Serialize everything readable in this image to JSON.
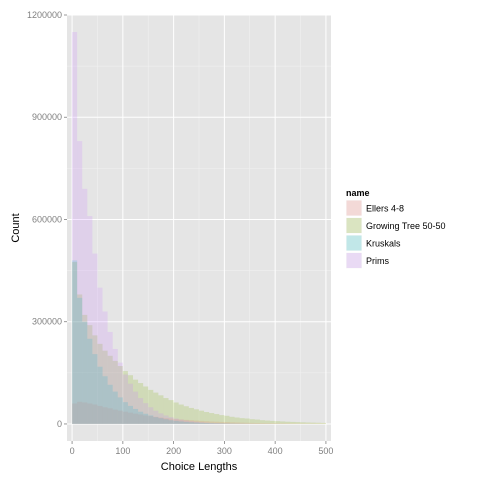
{
  "chart_data": {
    "type": "bar",
    "xlabel": "Choice Lengths",
    "ylabel": "Count",
    "xlim": [
      -10,
      510
    ],
    "ylim": [
      -50000,
      1200000
    ],
    "x_ticks": [
      0,
      100,
      200,
      300,
      400,
      500
    ],
    "x_tick_labels": [
      "0",
      "100",
      "200",
      "300",
      "400",
      "500"
    ],
    "y_ticks": [
      0,
      300000,
      600000,
      900000,
      1200000
    ],
    "y_tick_labels": [
      "0",
      "300000",
      "600000",
      "900000",
      "1200000"
    ],
    "grid": true,
    "bin_width": 10,
    "x": [
      0,
      10,
      20,
      30,
      40,
      50,
      60,
      70,
      80,
      90,
      100,
      110,
      120,
      130,
      140,
      150,
      160,
      170,
      180,
      190,
      200,
      210,
      220,
      230,
      240,
      250,
      260,
      270,
      280,
      290,
      300,
      310,
      320,
      330,
      340,
      350,
      360,
      370,
      380,
      390,
      400,
      410,
      420,
      430,
      440,
      450,
      460,
      470,
      480,
      490
    ],
    "series": [
      {
        "name": "Ellers 4-8",
        "color": "#f8766d",
        "values": [
          60000,
          65000,
          63000,
          60000,
          57000,
          53000,
          49000,
          46000,
          42000,
          39000,
          36000,
          33000,
          30000,
          28000,
          25000,
          23000,
          21000,
          19000,
          17000,
          16000,
          14000,
          13000,
          12000,
          11000,
          10000,
          9000,
          8000,
          7200,
          6500,
          5900,
          5300,
          4800,
          4300,
          3900,
          3500,
          3200,
          2900,
          2600,
          2300,
          2100,
          1900,
          1700,
          1500,
          1400,
          1200,
          1100,
          1000,
          900,
          800,
          700
        ]
      },
      {
        "name": "Growing Tree 50-50",
        "color": "#7cae00",
        "values": [
          475000,
          380000,
          320000,
          290000,
          260000,
          235000,
          215000,
          200000,
          185000,
          170000,
          155000,
          143000,
          130000,
          120000,
          110000,
          100000,
          92000,
          84000,
          76000,
          70000,
          63000,
          57000,
          52000,
          47000,
          43000,
          39000,
          35000,
          32000,
          29000,
          26000,
          24000,
          21000,
          19000,
          17000,
          16000,
          14000,
          13000,
          11000,
          10000,
          9000,
          8200,
          7400,
          6600,
          6000,
          5400,
          4800,
          4300,
          3900,
          3500,
          3100
        ]
      },
      {
        "name": "Kruskals",
        "color": "#00bfc4",
        "values": [
          480000,
          370000,
          300000,
          250000,
          205000,
          168000,
          140000,
          115000,
          95000,
          78000,
          64000,
          53000,
          44000,
          36000,
          30000,
          25000,
          20000,
          17000,
          14000,
          11000,
          9000,
          7500,
          6000,
          5000,
          4000,
          3300,
          2700,
          2200,
          1800,
          1500,
          1200,
          1000,
          800,
          650,
          500,
          420,
          350,
          280,
          230,
          190,
          150,
          120,
          100,
          80,
          65,
          50,
          40,
          30,
          25,
          20
        ]
      },
      {
        "name": "Prims",
        "color": "#c77cff",
        "values": [
          1150000,
          830000,
          690000,
          610000,
          500000,
          400000,
          330000,
          270000,
          220000,
          180000,
          145000,
          118000,
          95000,
          76000,
          61000,
          49000,
          39000,
          31000,
          25000,
          20000,
          16000,
          12800,
          10200,
          8100,
          6500,
          5200,
          4100,
          3300,
          2600,
          2100,
          1700,
          1300,
          1050,
          840,
          670,
          530,
          420,
          340,
          270,
          210,
          170,
          135,
          110,
          85,
          70,
          55,
          45,
          35,
          28,
          22
        ]
      }
    ],
    "legend": {
      "title": "name",
      "position": "right",
      "labels": [
        "Ellers 4-8",
        "Growing Tree 50-50",
        "Kruskals",
        "Prims"
      ]
    }
  }
}
